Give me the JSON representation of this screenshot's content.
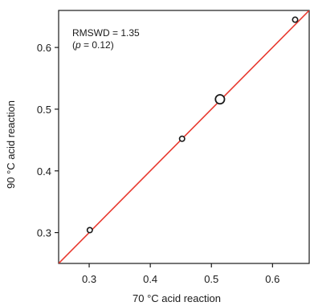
{
  "chart_data": {
    "type": "scatter",
    "xlabel": "70 °C acid reaction",
    "ylabel": "90 °C acid reaction",
    "xlim": [
      0.25,
      0.66
    ],
    "ylim": [
      0.25,
      0.66
    ],
    "x_ticks": [
      0.3,
      0.4,
      0.5,
      0.6
    ],
    "x_tick_labels": [
      "0.3",
      "0.4",
      "0.5",
      "0.6"
    ],
    "y_ticks": [
      0.3,
      0.4,
      0.5,
      0.6
    ],
    "y_tick_labels": [
      "0.3",
      "0.4",
      "0.5",
      "0.6"
    ],
    "grid": false,
    "annotation_line1": "RMSWD = 1.35",
    "annotation_p_prefix": "(",
    "annotation_p_symbol": "p",
    "annotation_p_value": " = 0.12)",
    "reference_line": {
      "color": "#e8392f",
      "from": [
        0.25,
        0.25
      ],
      "to": [
        0.66,
        0.66
      ]
    },
    "points": [
      {
        "x": 0.301,
        "y": 0.304,
        "size": "small"
      },
      {
        "x": 0.452,
        "y": 0.452,
        "size": "small"
      },
      {
        "x": 0.514,
        "y": 0.516,
        "size": "large"
      },
      {
        "x": 0.637,
        "y": 0.645,
        "size": "small"
      }
    ],
    "marker_color": "#1a1a1a"
  }
}
